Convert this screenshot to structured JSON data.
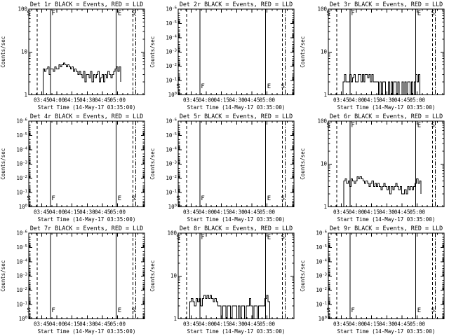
{
  "window": {
    "background": "#ffffff",
    "foreground": "#000000"
  },
  "chart_data": {
    "type": "line",
    "layout": "3x3-grid",
    "shared": {
      "xlabel": "Start Time (14-May-17 03:35:00)",
      "ylabel": "Counts/sec",
      "legend_note": "BLACK = Events, RED = LLD",
      "colors": {
        "events": "#000000",
        "lld": "#ff0000"
      },
      "x_ticks": [
        {
          "label": "03:45",
          "frac": 0.111
        },
        {
          "label": "04:00",
          "frac": 0.2425
        },
        {
          "label": "04:15",
          "frac": 0.374
        },
        {
          "label": "04:30",
          "frac": 0.5055
        },
        {
          "label": "04:45",
          "frac": 0.637
        },
        {
          "label": "05:00",
          "frac": 0.7685
        }
      ],
      "x_minor_step_frac": 0.0438,
      "event_markers": [
        {
          "frac": 0.074,
          "style": "dashed"
        },
        {
          "frac": 0.187,
          "style": "solid"
        },
        {
          "frac": 0.754,
          "style": "solid"
        },
        {
          "frac": 0.9,
          "style": "dashed"
        },
        {
          "frac": 0.925,
          "style": "dashdot"
        }
      ],
      "event_letters": [
        {
          "frac": 0.0,
          "char": "S",
          "anchor": "middle"
        },
        {
          "frac": 0.196,
          "char": "F",
          "anchor": "start"
        },
        {
          "frac": 0.768,
          "char": "E",
          "anchor": "start"
        },
        {
          "frac": 0.905,
          "char": "S",
          "anchor": "middle"
        }
      ]
    },
    "panels": [
      {
        "id": "det-1r",
        "title": "Det 1r BLACK = Events, RED = LLD",
        "y_axis": {
          "scale": "log",
          "ticks": [
            "1",
            "10",
            "100"
          ],
          "range": [
            1,
            100
          ]
        },
        "letters_pos": "top",
        "series": {
          "name": "Events",
          "color": "#000000",
          "x_start": 0.125,
          "x_end": 0.795,
          "counts_per_sec": [
            1,
            4,
            3.5,
            4,
            4.5,
            3,
            4,
            4,
            3.5,
            4.5,
            4,
            4,
            5,
            4.5,
            5,
            5.5,
            5,
            4.5,
            5,
            4.5,
            4,
            4.5,
            3.5,
            4,
            3.5,
            3,
            3.5,
            3,
            2.5,
            3.5,
            2,
            3,
            3,
            2.5,
            3.5,
            2,
            3,
            2.5,
            3,
            3.5,
            2,
            2.5,
            3,
            2,
            3,
            2.5,
            3.5,
            3,
            2.5,
            3,
            3.5,
            4,
            4.5,
            3.5,
            4.5,
            2
          ]
        }
      },
      {
        "id": "det-2r",
        "title": "Det 2r BLACK = Events, RED = LLD",
        "y_axis": {
          "scale": "log-reversed",
          "ticks": [
            "10^0",
            "10^-1",
            "10^-2",
            "10^-3",
            "10^-4",
            "10^-5",
            "10^-6"
          ],
          "tick_exponents": [
            0,
            -1,
            -2,
            -3,
            -4,
            -5,
            -6
          ],
          "range": [
            1,
            1e-06
          ]
        },
        "letters_pos": "bottom",
        "series": null
      },
      {
        "id": "det-3r",
        "title": "Det 3r BLACK = Events, RED = LLD",
        "y_axis": {
          "scale": "log",
          "ticks": [
            "1",
            "10",
            "100"
          ],
          "range": [
            1,
            100
          ]
        },
        "letters_pos": "top",
        "series": {
          "name": "Events",
          "color": "#000000",
          "x_start": 0.127,
          "x_end": 0.79,
          "counts_per_sec": [
            1,
            2,
            3,
            2,
            2,
            2,
            3,
            2,
            2.5,
            3,
            2,
            2,
            3,
            3,
            2,
            3,
            2,
            3,
            3,
            2.5,
            3,
            2,
            3,
            2,
            2,
            2,
            2,
            1,
            2,
            1,
            2,
            2,
            1,
            1,
            2,
            1,
            2,
            1,
            2,
            2,
            1,
            2,
            1,
            1,
            2,
            1,
            2,
            1,
            2,
            2,
            1,
            2,
            1,
            2,
            3,
            2,
            3,
            1
          ]
        }
      },
      {
        "id": "det-4r",
        "title": "Det 4r BLACK = Events, RED = LLD",
        "y_axis": {
          "scale": "log-reversed",
          "ticks": [
            "10^0",
            "10^-1",
            "10^-2",
            "10^-3",
            "10^-4",
            "10^-5",
            "10^-6"
          ],
          "tick_exponents": [
            0,
            -1,
            -2,
            -3,
            -4,
            -5,
            -6
          ],
          "range": [
            1,
            1e-06
          ]
        },
        "letters_pos": "bottom",
        "series": null
      },
      {
        "id": "det-5r",
        "title": "Det 5r BLACK = Events, RED = LLD",
        "y_axis": {
          "scale": "log-reversed",
          "ticks": [
            "10^0",
            "10^-1",
            "10^-2",
            "10^-3",
            "10^-4",
            "10^-5",
            "10^-6"
          ],
          "tick_exponents": [
            0,
            -1,
            -2,
            -3,
            -4,
            -5,
            -6
          ],
          "range": [
            1,
            1e-06
          ]
        },
        "letters_pos": "bottom",
        "series": null
      },
      {
        "id": "det-6r",
        "title": "Det 6r BLACK = Events, RED = LLD",
        "y_axis": {
          "scale": "log",
          "ticks": [
            "1",
            "10",
            "100"
          ],
          "range": [
            1,
            100
          ]
        },
        "letters_pos": "top",
        "series": {
          "name": "Events",
          "color": "#000000",
          "x_start": 0.133,
          "x_end": 0.8,
          "counts_per_sec": [
            1,
            4,
            4.5,
            3.5,
            4,
            3,
            4.5,
            4,
            3.5,
            4,
            5,
            4.5,
            5,
            4.5,
            4,
            3.5,
            4,
            3.5,
            3,
            3.5,
            4,
            3,
            3.5,
            3,
            3.5,
            3,
            2.5,
            3,
            3.5,
            3,
            2.5,
            3,
            2,
            3,
            2.5,
            3,
            3.5,
            3,
            2.5,
            3,
            2,
            2,
            2.5,
            2,
            3,
            2.5,
            3,
            2.5,
            3,
            3.5,
            4.5,
            3.5,
            4,
            2
          ]
        }
      },
      {
        "id": "det-7r",
        "title": "Det 7r BLACK = Events, RED = LLD",
        "y_axis": {
          "scale": "log-reversed",
          "ticks": [
            "10^0",
            "10^-1",
            "10^-2",
            "10^-3",
            "10^-4",
            "10^-5",
            "10^-6"
          ],
          "tick_exponents": [
            0,
            -1,
            -2,
            -3,
            -4,
            -5,
            -6
          ],
          "range": [
            1,
            1e-06
          ]
        },
        "letters_pos": "bottom",
        "series": null
      },
      {
        "id": "det-8r",
        "title": "Det 8r BLACK = Events, RED = LLD",
        "y_axis": {
          "scale": "log",
          "ticks": [
            "1",
            "10",
            "100"
          ],
          "range": [
            1,
            100
          ]
        },
        "letters_pos": "top",
        "series": {
          "name": "Events",
          "color": "#000000",
          "x_start": 0.1,
          "x_end": 0.79,
          "counts_per_sec": [
            1,
            2.5,
            3,
            2.5,
            2,
            3,
            2.5,
            3,
            2,
            3,
            3.5,
            3,
            3.5,
            3,
            3.5,
            3,
            2.5,
            3,
            2.5,
            2,
            2,
            1,
            2,
            2,
            1,
            2,
            2,
            1,
            2,
            2,
            2,
            1,
            2,
            1,
            2,
            2,
            1,
            2,
            2,
            3,
            2,
            1,
            2,
            2,
            1,
            2,
            2,
            2,
            2,
            3,
            3.5,
            2.5,
            1
          ]
        }
      },
      {
        "id": "det-9r",
        "title": "Det 9r BLACK = Events, RED = LLD",
        "y_axis": {
          "scale": "log-reversed",
          "ticks": [
            "10^0",
            "10^-1",
            "10^-2",
            "10^-3",
            "10^-4",
            "10^-5",
            "10^-6"
          ],
          "tick_exponents": [
            0,
            -1,
            -2,
            -3,
            -4,
            -5,
            -6
          ],
          "range": [
            1,
            1e-06
          ]
        },
        "letters_pos": "bottom",
        "series": null
      }
    ]
  }
}
